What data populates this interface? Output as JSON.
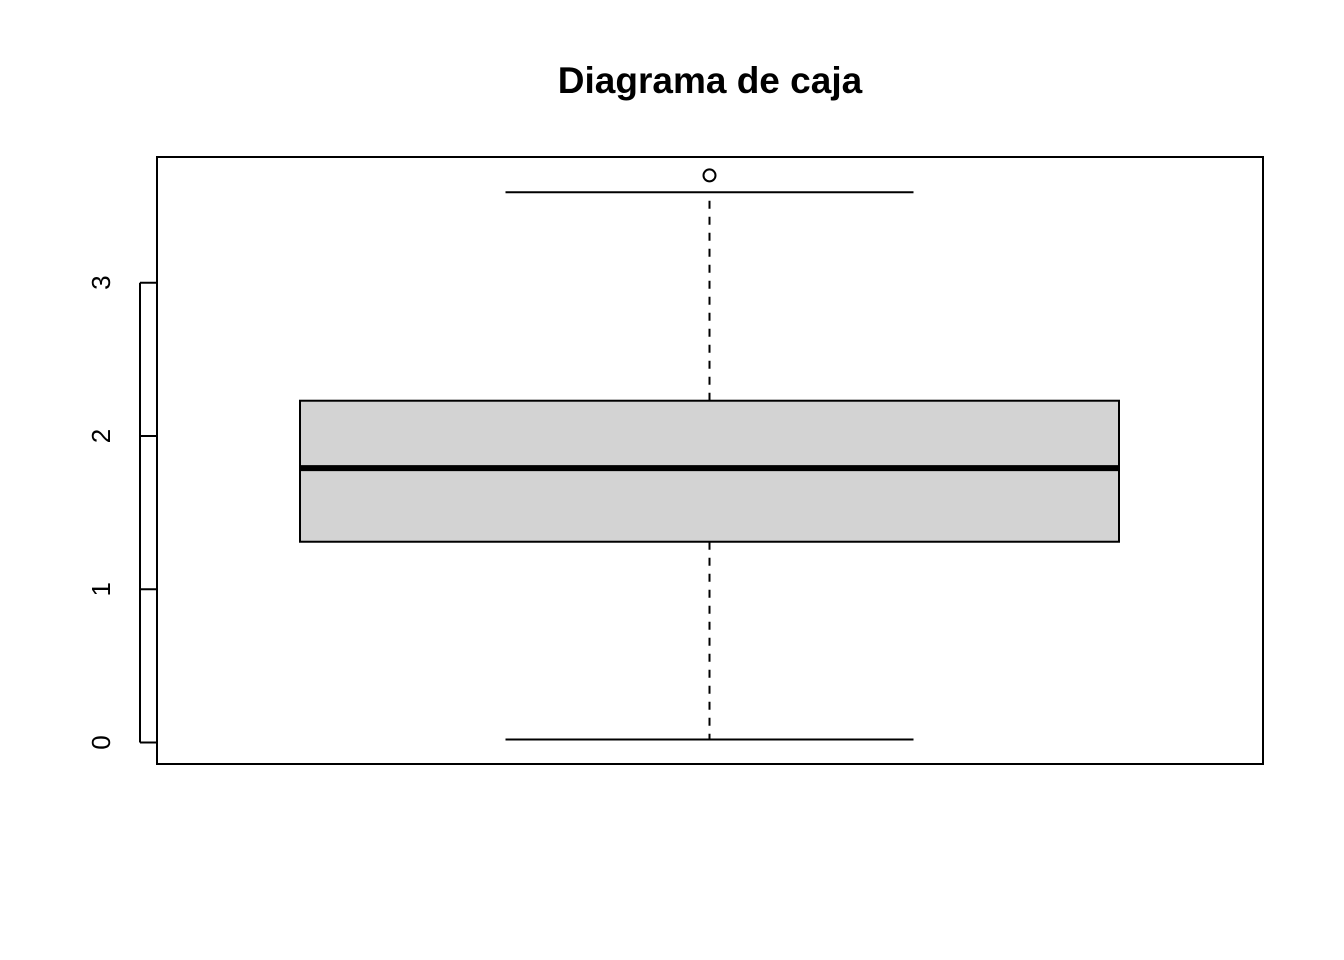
{
  "chart_data": {
    "type": "boxplot",
    "title": "Diagrama de caja",
    "xlabel": "",
    "ylabel": "",
    "ylim": [
      -0.14,
      3.82
    ],
    "y_ticks": [
      0,
      1,
      2,
      3
    ],
    "y_tick_labels": [
      "0",
      "1",
      "2",
      "3"
    ],
    "grid": false,
    "legend": "none",
    "box": {
      "whisker_low": 0.02,
      "q1": 1.31,
      "median": 1.79,
      "q3": 2.23,
      "whisker_high": 3.59,
      "outliers": [
        3.7
      ]
    },
    "colors": {
      "box_fill": "#d3d3d3",
      "stroke": "#000000",
      "background": "#ffffff"
    }
  }
}
